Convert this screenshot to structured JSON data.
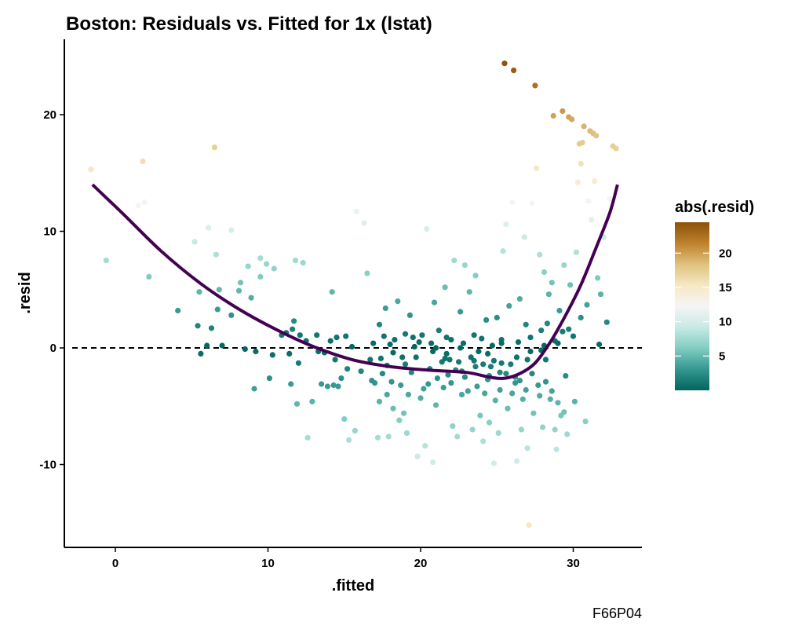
{
  "chart_data": {
    "type": "scatter",
    "title": "Boston: Residuals vs. Fitted for 1x (lstat)",
    "xlabel": ".fitted",
    "ylabel": ".resid",
    "caption": "F66P04",
    "xlim": [
      -3.3,
      34.8
    ],
    "ylim": [
      -17.0,
      26.5
    ],
    "xticks": [
      0,
      10,
      20,
      30
    ],
    "yticks": [
      -10,
      0,
      10,
      20
    ],
    "reference_line": {
      "y": 0,
      "style": "dashed",
      "color": "#000000"
    },
    "color_scale": {
      "title": "abs(.resid)",
      "breaks": [
        5,
        10,
        15,
        20
      ],
      "range": [
        0.0,
        24.5
      ],
      "stops": [
        "#01665e",
        "#35978f",
        "#80cdc1",
        "#c7eae5",
        "#f5f5f5",
        "#f6e8c3",
        "#dfc27d",
        "#bf812d",
        "#8c510a"
      ]
    },
    "smooth": {
      "color": "#440154",
      "x": [
        -1.5,
        0.5,
        3.0,
        5.5,
        8.0,
        10.5,
        13.0,
        15.5,
        18.0,
        20.5,
        23.0,
        24.5,
        25.5,
        26.5,
        27.5,
        28.5,
        29.5,
        30.5,
        31.5,
        32.4,
        32.9
      ],
      "y": [
        14.0,
        11.5,
        8.3,
        5.6,
        3.4,
        1.6,
        0.1,
        -1.0,
        -1.6,
        -1.9,
        -2.1,
        -2.5,
        -2.6,
        -2.2,
        -1.3,
        0.5,
        2.8,
        5.4,
        8.6,
        11.6,
        14.0
      ]
    },
    "points": [
      [
        -1.6,
        15.3
      ],
      [
        -0.6,
        7.5
      ],
      [
        1.5,
        12.2
      ],
      [
        1.8,
        16.0
      ],
      [
        1.9,
        12.5
      ],
      [
        2.2,
        6.1
      ],
      [
        4.1,
        3.2
      ],
      [
        5.2,
        9.1
      ],
      [
        5.4,
        1.9
      ],
      [
        5.5,
        4.8
      ],
      [
        5.6,
        -0.5
      ],
      [
        6.0,
        0.2
      ],
      [
        6.1,
        10.3
      ],
      [
        6.3,
        1.7
      ],
      [
        6.5,
        17.2
      ],
      [
        6.6,
        8.0
      ],
      [
        6.7,
        3.3
      ],
      [
        6.8,
        5.0
      ],
      [
        7.0,
        0.2
      ],
      [
        7.6,
        10.1
      ],
      [
        7.6,
        2.8
      ],
      [
        8.1,
        4.9
      ],
      [
        8.2,
        5.6
      ],
      [
        8.5,
        -0.1
      ],
      [
        8.7,
        7.0
      ],
      [
        8.9,
        4.3
      ],
      [
        9.1,
        -3.5
      ],
      [
        9.2,
        -0.3
      ],
      [
        9.5,
        6.1
      ],
      [
        9.5,
        7.7
      ],
      [
        9.9,
        7.2
      ],
      [
        10.1,
        -2.6
      ],
      [
        10.3,
        -0.6
      ],
      [
        10.4,
        6.8
      ],
      [
        10.9,
        1.1
      ],
      [
        11.2,
        1.3
      ],
      [
        11.4,
        -0.5
      ],
      [
        11.5,
        -3.1
      ],
      [
        11.6,
        1.6
      ],
      [
        11.7,
        2.3
      ],
      [
        11.8,
        7.5
      ],
      [
        11.9,
        -4.8
      ],
      [
        12.0,
        -1.3
      ],
      [
        12.1,
        1.1
      ],
      [
        12.3,
        7.3
      ],
      [
        12.5,
        0.6
      ],
      [
        12.6,
        -7.7
      ],
      [
        12.9,
        -4.6
      ],
      [
        13.2,
        1.1
      ],
      [
        13.3,
        -0.3
      ],
      [
        13.5,
        -3.1
      ],
      [
        13.7,
        -0.4
      ],
      [
        13.9,
        -3.3
      ],
      [
        14.1,
        0.6
      ],
      [
        14.2,
        4.8
      ],
      [
        14.3,
        -3.2
      ],
      [
        14.4,
        -1.0
      ],
      [
        14.5,
        0.9
      ],
      [
        14.6,
        -3.3
      ],
      [
        14.8,
        -2.6
      ],
      [
        15.0,
        -6.1
      ],
      [
        15.1,
        1.0
      ],
      [
        15.2,
        -1.8
      ],
      [
        15.3,
        -7.9
      ],
      [
        15.5,
        0.1
      ],
      [
        15.7,
        -7.1
      ],
      [
        15.8,
        11.7
      ],
      [
        16.1,
        -2.0
      ],
      [
        16.3,
        10.7
      ],
      [
        16.5,
        6.4
      ],
      [
        16.7,
        -1.0
      ],
      [
        16.9,
        0.4
      ],
      [
        17.0,
        -3.0
      ],
      [
        17.2,
        -7.7
      ],
      [
        17.3,
        2.0
      ],
      [
        17.4,
        -0.9
      ],
      [
        17.5,
        -2.2
      ],
      [
        17.6,
        1.0
      ],
      [
        17.7,
        3.4
      ],
      [
        17.8,
        -4.0
      ],
      [
        17.9,
        -7.6
      ],
      [
        18.0,
        0.3
      ],
      [
        18.1,
        -2.9
      ],
      [
        18.2,
        -5.2
      ],
      [
        18.3,
        0.7
      ],
      [
        18.5,
        4.0
      ],
      [
        18.6,
        -6.2
      ],
      [
        18.8,
        -0.8
      ],
      [
        18.9,
        -5.6
      ],
      [
        19.0,
        -1.4
      ],
      [
        19.1,
        -7.3
      ],
      [
        19.3,
        2.8
      ],
      [
        19.4,
        -2.1
      ],
      [
        19.5,
        0.9
      ],
      [
        19.6,
        0.1
      ],
      [
        19.8,
        -9.3
      ],
      [
        20.0,
        -4.3
      ],
      [
        20.1,
        1.1
      ],
      [
        20.3,
        -8.4
      ],
      [
        20.4,
        10.2
      ],
      [
        20.5,
        -3.1
      ],
      [
        20.7,
        0.4
      ],
      [
        20.8,
        -9.8
      ],
      [
        20.9,
        3.9
      ],
      [
        21.0,
        -4.9
      ],
      [
        21.2,
        1.5
      ],
      [
        21.4,
        -1.2
      ],
      [
        21.5,
        -3.4
      ],
      [
        21.6,
        5.2
      ],
      [
        21.7,
        -0.5
      ],
      [
        21.8,
        -2.3
      ],
      [
        22.0,
        0.7
      ],
      [
        22.1,
        -6.7
      ],
      [
        22.2,
        7.5
      ],
      [
        22.3,
        -1.9
      ],
      [
        22.4,
        -7.6
      ],
      [
        22.6,
        3.1
      ],
      [
        22.7,
        -4.0
      ],
      [
        22.8,
        0.4
      ],
      [
        22.9,
        7.1
      ],
      [
        23.1,
        -3.7
      ],
      [
        23.2,
        4.8
      ],
      [
        23.4,
        -7.0
      ],
      [
        23.5,
        -1.1
      ],
      [
        23.6,
        6.2
      ],
      [
        23.8,
        -0.3
      ],
      [
        23.9,
        -5.8
      ],
      [
        24.0,
        0.8
      ],
      [
        24.1,
        -8.0
      ],
      [
        24.2,
        -3.9
      ],
      [
        24.3,
        2.4
      ],
      [
        24.5,
        -6.4
      ],
      [
        24.6,
        -1.6
      ],
      [
        24.7,
        0.2
      ],
      [
        24.8,
        -9.9
      ],
      [
        24.9,
        -4.5
      ],
      [
        25.0,
        2.6
      ],
      [
        25.1,
        -7.3
      ],
      [
        25.2,
        -2.1
      ],
      [
        25.3,
        0.7
      ],
      [
        25.4,
        8.3
      ],
      [
        25.5,
        24.4
      ],
      [
        25.6,
        10.6
      ],
      [
        25.7,
        -5.2
      ],
      [
        25.8,
        3.6
      ],
      [
        25.9,
        -1.4
      ],
      [
        26.0,
        12.5
      ],
      [
        26.1,
        23.8
      ],
      [
        26.2,
        -3.0
      ],
      [
        26.3,
        -9.7
      ],
      [
        26.4,
        0.5
      ],
      [
        26.5,
        4.2
      ],
      [
        26.6,
        -7.0
      ],
      [
        26.7,
        -4.4
      ],
      [
        26.8,
        9.5
      ],
      [
        26.9,
        2.0
      ],
      [
        27.0,
        -8.6
      ],
      [
        27.1,
        -15.2
      ],
      [
        27.2,
        0.9
      ],
      [
        27.3,
        12.4
      ],
      [
        27.4,
        -5.6
      ],
      [
        27.5,
        22.5
      ],
      [
        27.6,
        15.4
      ],
      [
        27.7,
        -3.2
      ],
      [
        27.8,
        8.0
      ],
      [
        27.9,
        1.5
      ],
      [
        28.0,
        -6.8
      ],
      [
        28.1,
        6.5
      ],
      [
        28.2,
        -1.0
      ],
      [
        28.3,
        2.1
      ],
      [
        28.4,
        4.6
      ],
      [
        28.5,
        -4.4
      ],
      [
        28.6,
        5.6
      ],
      [
        28.7,
        19.9
      ],
      [
        28.8,
        -7.0
      ],
      [
        28.9,
        -8.7
      ],
      [
        29.0,
        0.4
      ],
      [
        29.1,
        3.2
      ],
      [
        29.2,
        -5.8
      ],
      [
        29.3,
        20.3
      ],
      [
        29.4,
        7.1
      ],
      [
        29.5,
        -2.4
      ],
      [
        29.6,
        -7.4
      ],
      [
        29.7,
        19.8
      ],
      [
        29.8,
        5.4
      ],
      [
        29.9,
        19.6
      ],
      [
        30.0,
        1.0
      ],
      [
        30.1,
        -4.6
      ],
      [
        30.2,
        8.2
      ],
      [
        30.3,
        14.2
      ],
      [
        30.4,
        17.5
      ],
      [
        30.5,
        15.8
      ],
      [
        30.6,
        17.6
      ],
      [
        30.7,
        19.0
      ],
      [
        30.8,
        -6.3
      ],
      [
        30.9,
        3.7
      ],
      [
        31.0,
        12.6
      ],
      [
        31.1,
        18.6
      ],
      [
        31.2,
        11.0
      ],
      [
        31.3,
        18.4
      ],
      [
        31.4,
        14.3
      ],
      [
        31.5,
        18.2
      ],
      [
        31.6,
        6.0
      ],
      [
        31.7,
        0.3
      ],
      [
        31.8,
        4.6
      ],
      [
        32.0,
        9.5
      ],
      [
        32.2,
        2.2
      ],
      [
        32.4,
        12.8
      ],
      [
        32.6,
        17.3
      ],
      [
        32.8,
        17.1
      ],
      [
        16.8,
        -2.8
      ],
      [
        17.3,
        -4.6
      ],
      [
        17.8,
        -1.5
      ],
      [
        18.2,
        -0.4
      ],
      [
        18.7,
        -3.2
      ],
      [
        19.2,
        -4.0
      ],
      [
        19.7,
        -0.8
      ],
      [
        20.2,
        -3.5
      ],
      [
        20.6,
        -1.8
      ],
      [
        21.1,
        -2.6
      ],
      [
        21.6,
        -0.9
      ],
      [
        22.0,
        -3.0
      ],
      [
        22.5,
        -1.2
      ],
      [
        22.9,
        -2.5
      ],
      [
        23.3,
        -0.8
      ],
      [
        23.7,
        -3.3
      ],
      [
        24.1,
        -1.4
      ],
      [
        24.4,
        -2.7
      ],
      [
        24.8,
        -1.1
      ],
      [
        25.2,
        -3.6
      ],
      [
        25.6,
        -2.2
      ],
      [
        26.0,
        -3.9
      ],
      [
        26.5,
        -2.8
      ],
      [
        26.9,
        -3.6
      ],
      [
        27.3,
        -2.2
      ],
      [
        27.8,
        -4.1
      ],
      [
        28.2,
        -2.9
      ],
      [
        28.6,
        -3.7
      ],
      [
        29.0,
        -4.7
      ],
      [
        29.4,
        -5.5
      ],
      [
        21.0,
        0.0
      ],
      [
        21.9,
        -1.0
      ],
      [
        22.7,
        -2.0
      ],
      [
        23.6,
        -1.6
      ],
      [
        24.5,
        -2.4
      ],
      [
        25.3,
        -1.3
      ],
      [
        26.2,
        -2.5
      ],
      [
        27.0,
        -1.0
      ],
      [
        27.9,
        -0.2
      ],
      [
        28.8,
        0.6
      ],
      [
        29.7,
        1.6
      ],
      [
        30.5,
        2.6
      ],
      [
        19.0,
        1.2
      ],
      [
        19.9,
        0.5
      ],
      [
        20.8,
        -0.3
      ],
      [
        21.7,
        0.9
      ],
      [
        22.6,
        0.0
      ],
      [
        23.5,
        1.1
      ],
      [
        24.4,
        -0.5
      ],
      [
        25.3,
        0.4
      ],
      [
        26.3,
        -0.8
      ],
      [
        27.2,
        -0.3
      ],
      [
        28.1,
        0.2
      ],
      [
        29.3,
        1.4
      ]
    ]
  }
}
